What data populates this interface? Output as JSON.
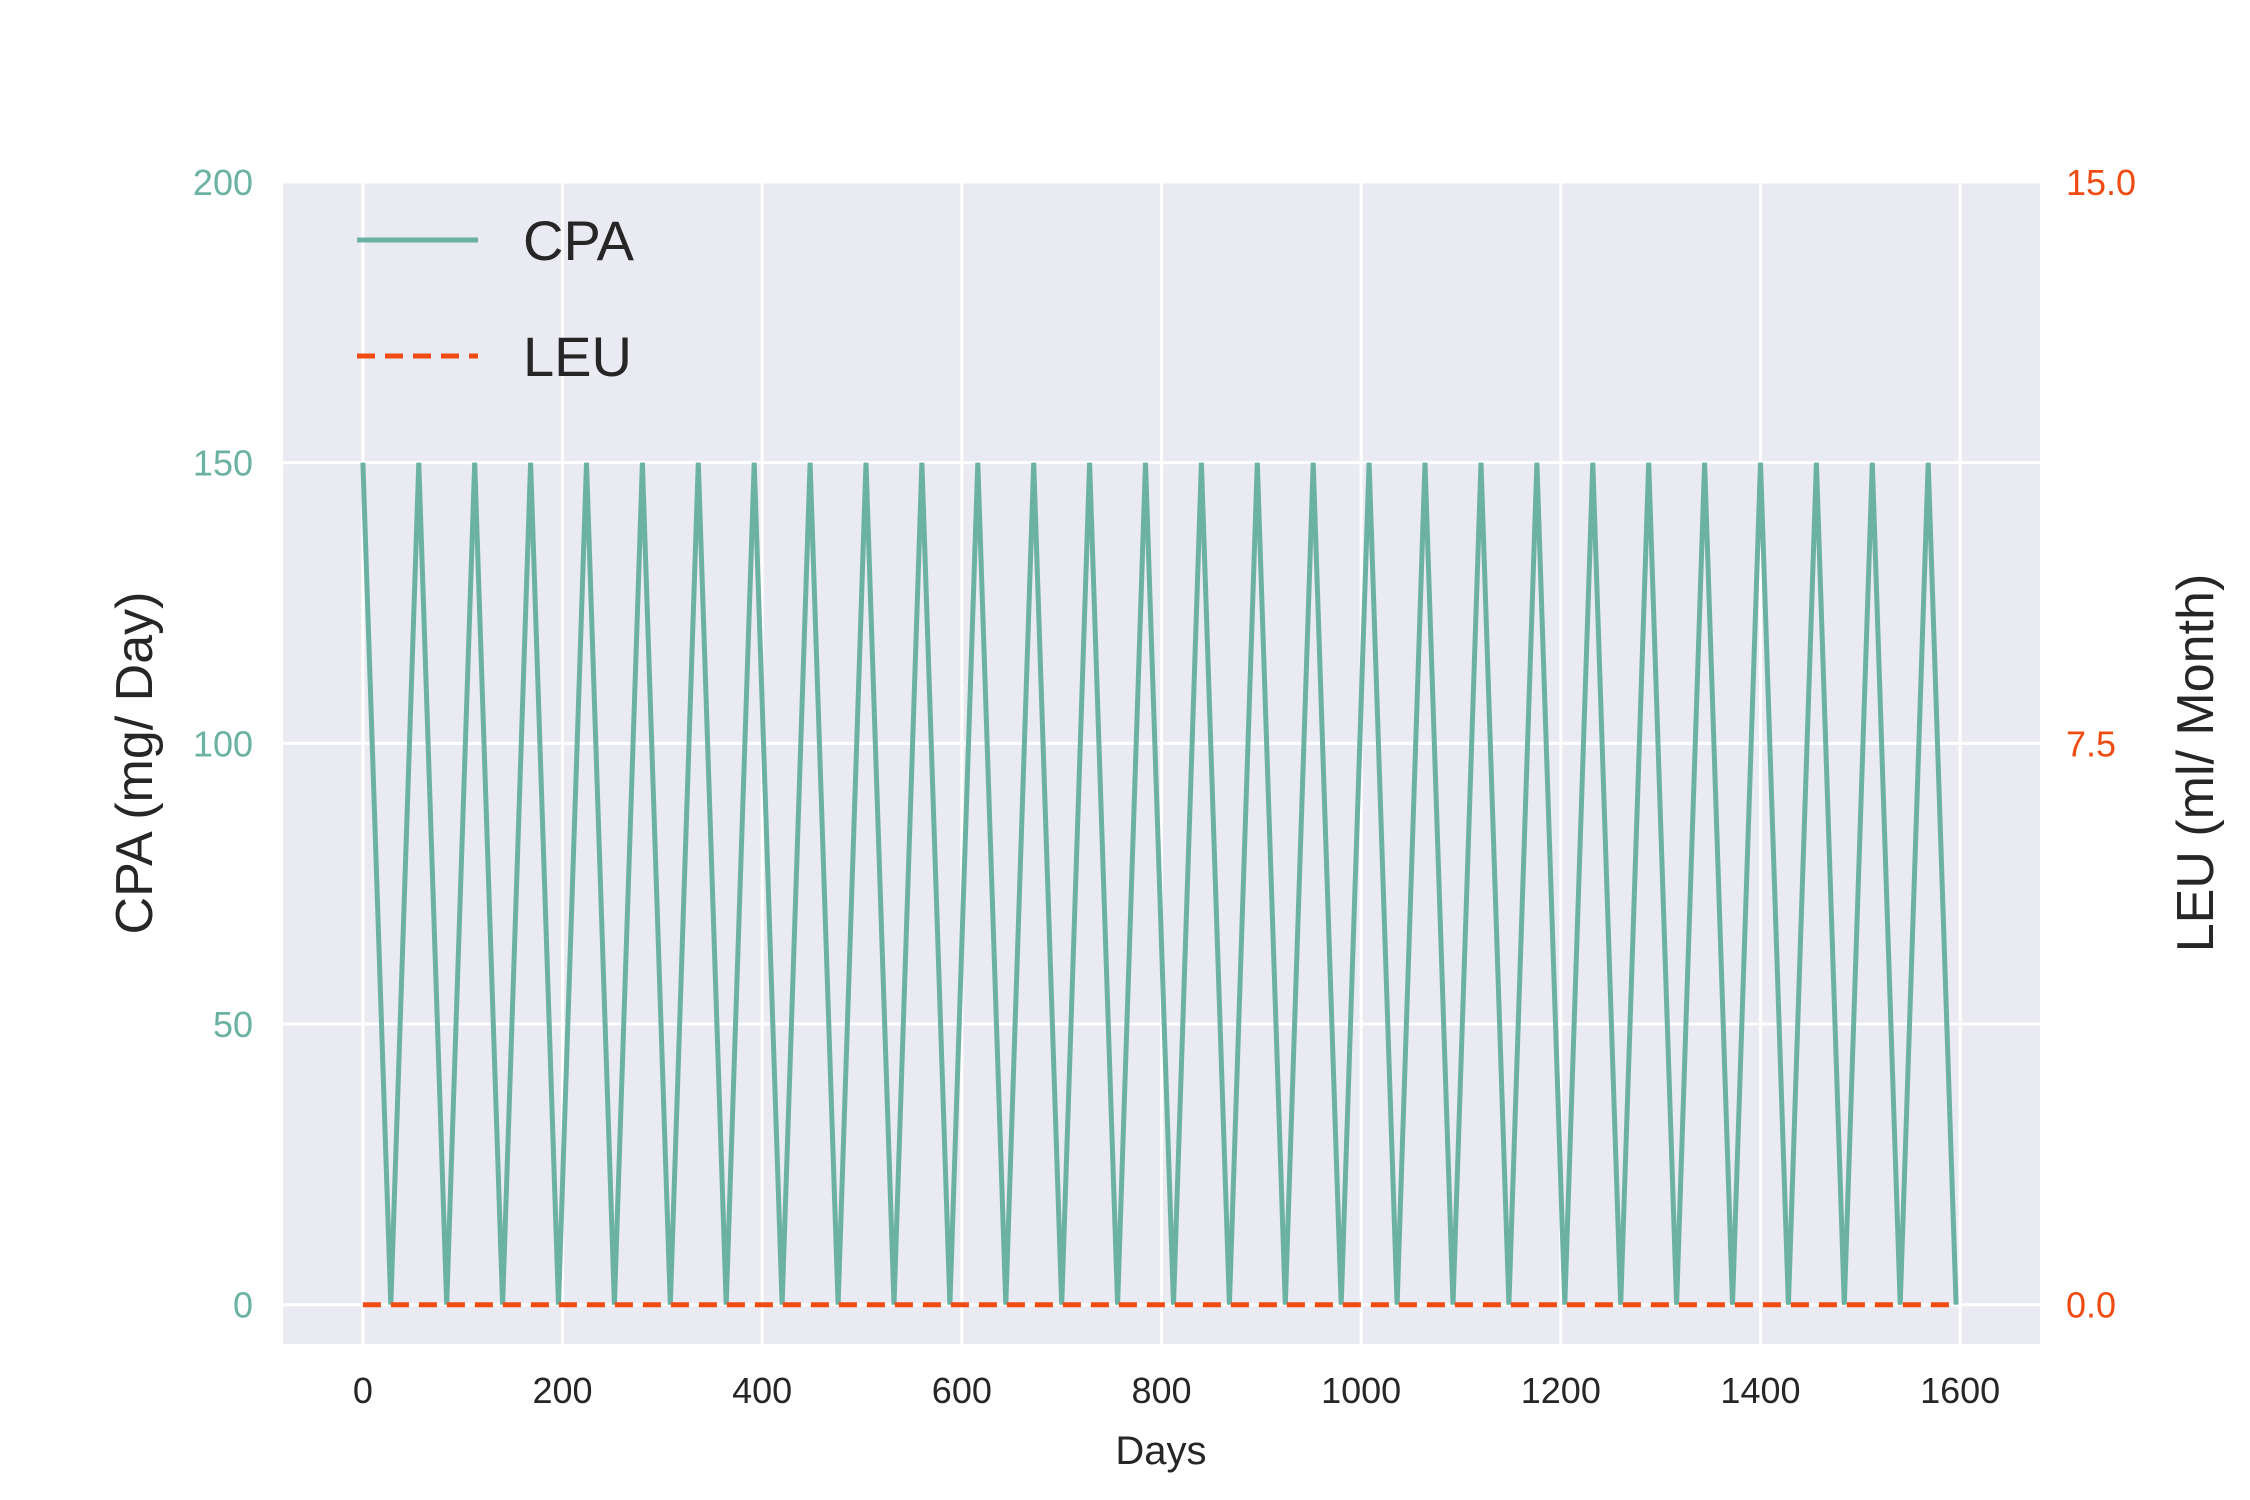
{
  "chart_data": {
    "type": "line",
    "title": "",
    "xlabel": "Days",
    "ylabel_left": "CPA (mg/ Day)",
    "ylabel_right": "LEU (ml/ Month)",
    "xlim": [
      -80,
      1680
    ],
    "ylim_left": [
      -7,
      200
    ],
    "ylim_right": [
      -0.525,
      15.0
    ],
    "x_ticks": [
      0,
      200,
      400,
      600,
      800,
      1000,
      1200,
      1400,
      1600
    ],
    "x_tick_labels": [
      "0",
      "200",
      "400",
      "600",
      "800",
      "1000",
      "1200",
      "1400",
      "1600"
    ],
    "y_left_ticks": [
      0,
      50,
      100,
      150,
      200
    ],
    "y_left_tick_labels": [
      "0",
      "50",
      "100",
      "150",
      "200"
    ],
    "y_right_ticks": [
      0.0,
      7.5,
      15.0
    ],
    "y_right_tick_labels": [
      "0.0",
      "7.5",
      "15.0"
    ],
    "grid": true,
    "legend_position": "top-left",
    "colors": {
      "cpa": "#6bb2a2",
      "leu": "#f04b12",
      "plot_bg": "#eaeaf2",
      "grid": "#ffffff"
    },
    "series": [
      {
        "name": "CPA",
        "axis": "left",
        "style": "solid",
        "x": [
          0,
          28,
          56,
          84,
          112,
          140,
          168,
          196,
          224,
          252,
          280,
          308,
          336,
          364,
          392,
          420,
          448,
          476,
          504,
          532,
          560,
          588,
          616,
          644,
          672,
          700,
          728,
          756,
          784,
          812,
          840,
          868,
          896,
          924,
          952,
          980,
          1008,
          1036,
          1064,
          1092,
          1120,
          1148,
          1176,
          1204,
          1232,
          1260,
          1288,
          1316,
          1344,
          1372,
          1400,
          1428,
          1456,
          1484,
          1512,
          1540,
          1568,
          1596
        ],
        "y": [
          150,
          0,
          150,
          0,
          150,
          0,
          150,
          0,
          150,
          0,
          150,
          0,
          150,
          0,
          150,
          0,
          150,
          0,
          150,
          0,
          150,
          0,
          150,
          0,
          150,
          0,
          150,
          0,
          150,
          0,
          150,
          0,
          150,
          0,
          150,
          0,
          150,
          0,
          150,
          0,
          150,
          0,
          150,
          0,
          150,
          0,
          150,
          0,
          150,
          0,
          150,
          0,
          150,
          0,
          150,
          0,
          150,
          0
        ]
      },
      {
        "name": "LEU",
        "axis": "right",
        "style": "dashed",
        "x": [
          0,
          1596
        ],
        "y": [
          0,
          0
        ]
      }
    ]
  }
}
